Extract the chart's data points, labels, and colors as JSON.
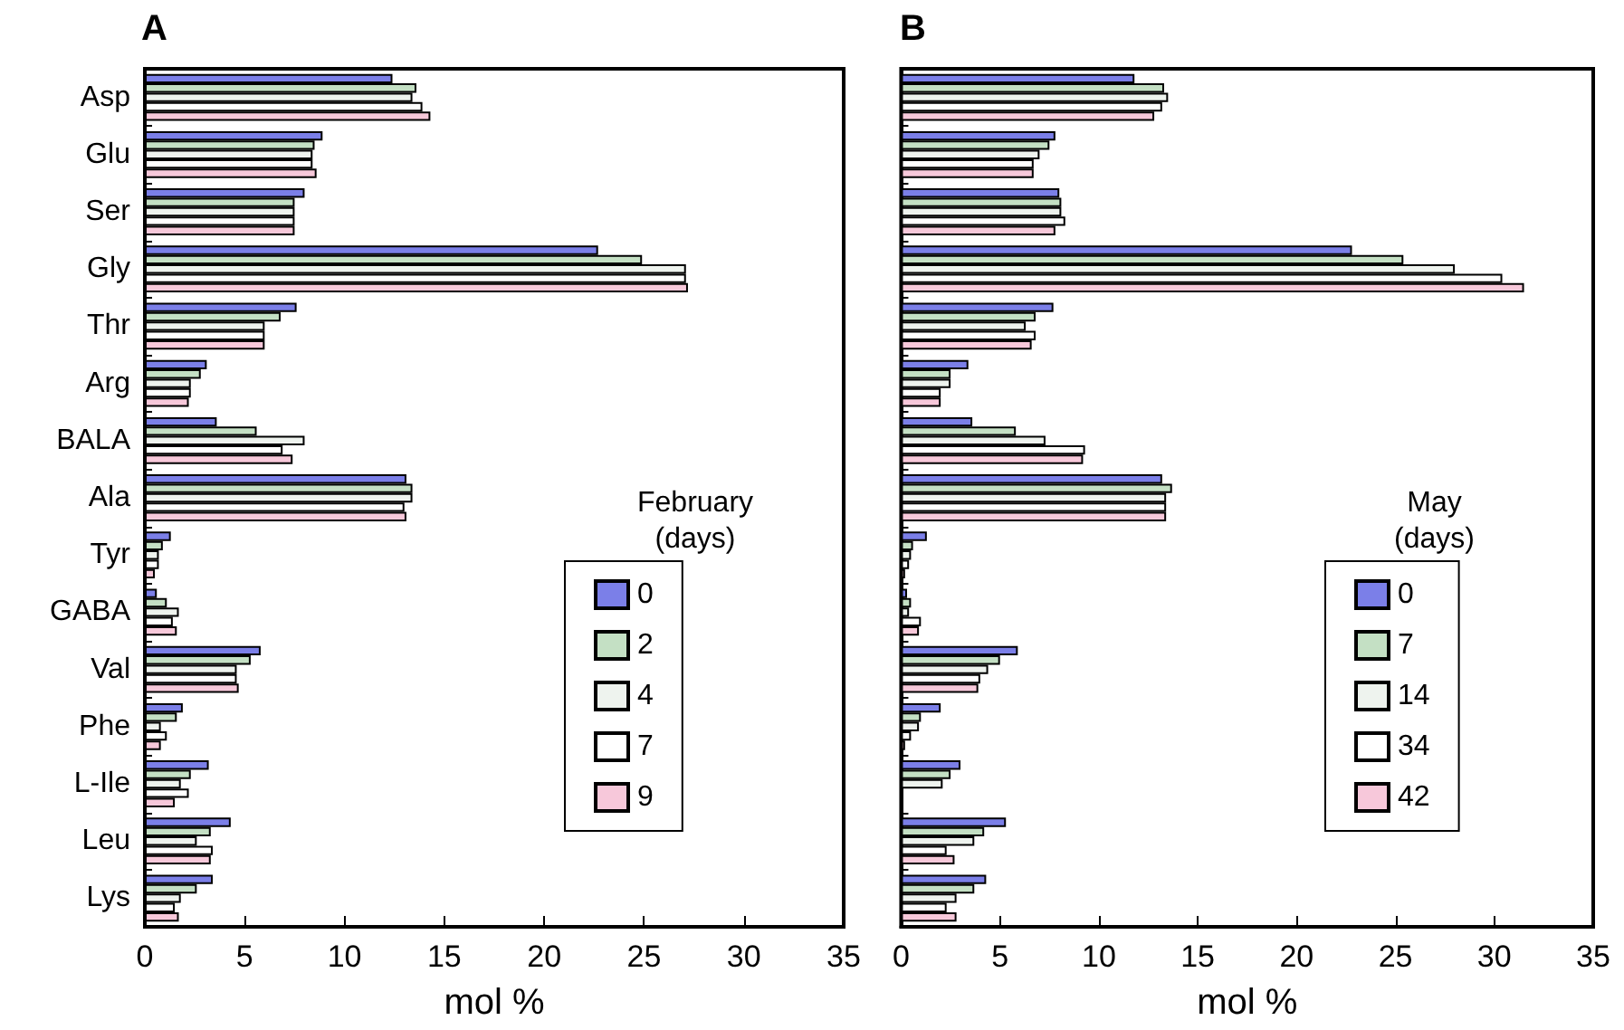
{
  "chart_data": [
    {
      "type": "bar",
      "orientation": "horizontal",
      "title": "A",
      "xlabel": "mol %",
      "legend_title": "February\n(days)",
      "legend": "right",
      "grid": false,
      "categories": [
        "Asp",
        "Glu",
        "Ser",
        "Gly",
        "Thr",
        "Arg",
        "BALA",
        "Ala",
        "Tyr",
        "GABA",
        "Val",
        "Phe",
        "L-Ile",
        "Leu",
        "Lys"
      ],
      "xlim": [
        0,
        35
      ],
      "xticks": [
        0,
        5,
        10,
        15,
        20,
        25,
        30,
        35
      ],
      "series": [
        {
          "name": "0",
          "color": "#7b7fe8",
          "values": [
            12.4,
            8.9,
            8.0,
            22.7,
            7.6,
            3.1,
            3.6,
            13.1,
            1.3,
            0.6,
            5.8,
            1.9,
            3.2,
            4.3,
            3.4
          ]
        },
        {
          "name": "2",
          "color": "#c4e0c4",
          "values": [
            13.6,
            8.5,
            7.5,
            24.9,
            6.8,
            2.8,
            5.6,
            13.4,
            0.9,
            1.1,
            5.3,
            1.6,
            2.3,
            3.3,
            2.6
          ]
        },
        {
          "name": "4",
          "color": "#eef3ee",
          "values": [
            13.4,
            8.4,
            7.5,
            27.1,
            6.0,
            2.3,
            8.0,
            13.4,
            0.7,
            1.7,
            4.6,
            0.8,
            1.8,
            2.6,
            1.8
          ]
        },
        {
          "name": "7",
          "color": "#ffffff",
          "values": [
            13.9,
            8.4,
            7.5,
            27.1,
            6.0,
            2.3,
            6.9,
            13.0,
            0.7,
            1.4,
            4.6,
            1.1,
            2.2,
            3.4,
            1.5
          ]
        },
        {
          "name": "9",
          "color": "#f7c8da",
          "values": [
            14.3,
            8.6,
            7.5,
            27.2,
            6.0,
            2.2,
            7.4,
            13.1,
            0.5,
            1.6,
            4.7,
            0.8,
            1.5,
            3.3,
            1.7
          ]
        }
      ]
    },
    {
      "type": "bar",
      "orientation": "horizontal",
      "title": "B",
      "xlabel": "mol %",
      "legend_title": "May\n(days)",
      "legend": "right",
      "grid": false,
      "tick_labels": "x",
      "categories": [
        null,
        null,
        null,
        null,
        null,
        null,
        null,
        null,
        null,
        null,
        null,
        null,
        null,
        null,
        null
      ],
      "xlim": [
        0,
        35
      ],
      "xticks": [
        0,
        5,
        10,
        15,
        20,
        25,
        30,
        35
      ],
      "series": [
        {
          "name": "0",
          "color": "#7b7fe8",
          "values": [
            11.8,
            7.8,
            8.0,
            22.8,
            7.7,
            3.4,
            3.6,
            13.2,
            1.3,
            0.3,
            5.9,
            2.0,
            3.0,
            5.3,
            4.3
          ]
        },
        {
          "name": "7",
          "color": "#c4e0c4",
          "values": [
            13.3,
            7.5,
            8.1,
            25.4,
            6.8,
            2.5,
            5.8,
            13.7,
            0.6,
            0.5,
            5.0,
            1.0,
            2.5,
            4.2,
            3.7
          ]
        },
        {
          "name": "14",
          "color": "#eef3ee",
          "values": [
            13.5,
            7.0,
            8.1,
            28.0,
            6.3,
            2.5,
            7.3,
            13.4,
            0.5,
            0.4,
            4.4,
            0.9,
            2.1,
            3.7,
            2.8
          ]
        },
        {
          "name": "34",
          "color": "#ffffff",
          "values": [
            13.2,
            6.7,
            8.3,
            30.4,
            6.8,
            2.0,
            9.3,
            13.4,
            0.4,
            1.0,
            4.0,
            0.5,
            null,
            2.3,
            2.3
          ]
        },
        {
          "name": "42",
          "color": "#f7c8da",
          "values": [
            12.8,
            6.7,
            7.8,
            31.5,
            6.6,
            2.0,
            9.2,
            13.4,
            0.2,
            0.9,
            3.9,
            0.2,
            null,
            2.7,
            2.8
          ]
        }
      ]
    }
  ]
}
